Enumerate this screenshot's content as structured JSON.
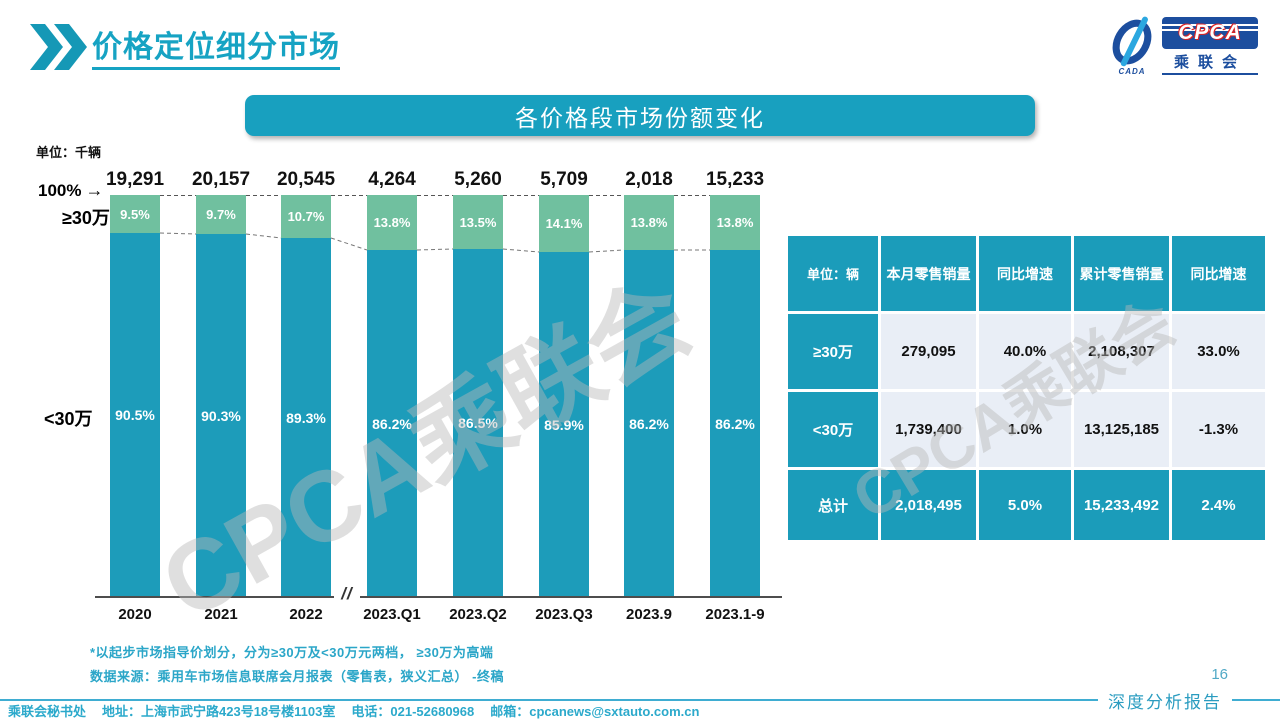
{
  "page": {
    "number": "16",
    "report_label": "深度分析报告"
  },
  "header": {
    "title": "价格定位细分市场",
    "logo": {
      "acronym": "CPCA",
      "org_cn": "乘联会",
      "sub": "CADA"
    }
  },
  "banner": {
    "title": "各价格段市场份额变化"
  },
  "chart_data": {
    "type": "bar",
    "stacked": true,
    "unit_label": "单位：千辆",
    "axis_annotations": {
      "hundred_percent": "100%",
      "upper_label": "≥30万",
      "lower_label": "<30万",
      "axis_break": "//"
    },
    "categories": [
      "2020",
      "2021",
      "2022",
      "2023.Q1",
      "2023.Q2",
      "2023.Q3",
      "2023.9",
      "2023.1-9"
    ],
    "totals": [
      "19,291",
      "20,157",
      "20,545",
      "4,264",
      "5,260",
      "5,709",
      "2,018",
      "15,233"
    ],
    "series": [
      {
        "name": "≥30万",
        "color": "#70c09f",
        "values": [
          9.5,
          9.7,
          10.7,
          13.8,
          13.5,
          14.1,
          13.8,
          13.8
        ],
        "labels": [
          "9.5%",
          "9.7%",
          "10.7%",
          "13.8%",
          "13.5%",
          "14.1%",
          "13.8%",
          "13.8%"
        ]
      },
      {
        "name": "<30万",
        "color": "#1d9cba",
        "values": [
          90.5,
          90.3,
          89.3,
          86.2,
          86.5,
          85.9,
          86.2,
          86.2
        ],
        "labels": [
          "90.5%",
          "90.3%",
          "89.3%",
          "86.2%",
          "86.5%",
          "85.9%",
          "86.2%",
          "86.2%"
        ]
      }
    ],
    "ylim": [
      0,
      100
    ],
    "legend_position": "none",
    "grid": false
  },
  "table": {
    "header": [
      "单位：辆",
      "本月零售销量",
      "同比增速",
      "累计零售销量",
      "同比增速"
    ],
    "rows": [
      {
        "label": "≥30万",
        "cells": [
          "279,095",
          "40.0%",
          "2,108,307",
          "33.0%"
        ]
      },
      {
        "label": "<30万",
        "cells": [
          "1,739,400",
          "1.0%",
          "13,125,185",
          "-1.3%"
        ]
      }
    ],
    "total_row": {
      "label": "总计",
      "cells": [
        "2,018,495",
        "5.0%",
        "15,233,492",
        "2.4%"
      ]
    }
  },
  "footnotes": [
    "*以起步市场指导价划分，分为≥30万及<30万元两档， ≥30万为高端",
    "数据来源：乘用车市场信息联席会月报表（零售表，狭义汇总） -终稿"
  ],
  "watermark": "CPCA乘联会",
  "footer": {
    "secretariat": "乘联会秘书处",
    "address": "地址：上海市武宁路423号18号楼1103室",
    "phone": "电话：021-52680968",
    "email": "邮箱：cpcanews@sxtauto.com.cn"
  },
  "colors": {
    "teal": "#1d9cba",
    "green": "#70c09f",
    "banner": "#18a0bf",
    "accent_text": "#16a3c3"
  }
}
